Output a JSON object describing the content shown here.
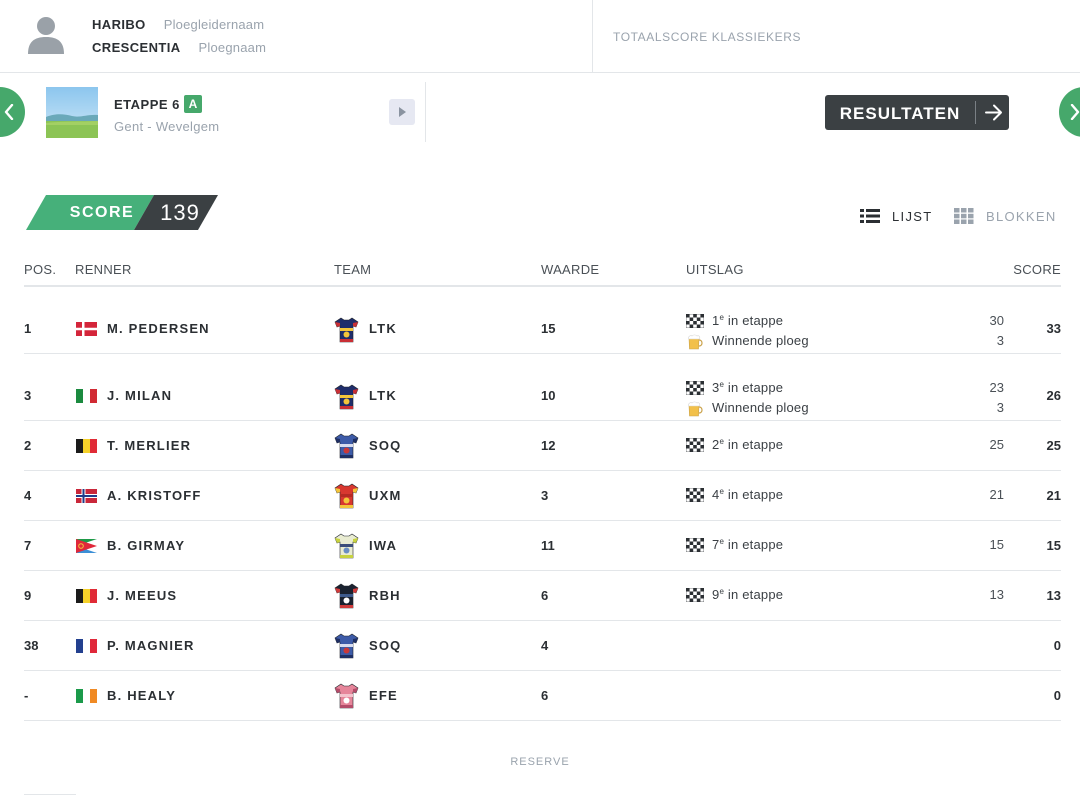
{
  "header": {
    "manager_name": "HARIBO",
    "manager_label": "Ploegleidernaam",
    "team_name": "CRESCENTIA",
    "team_label": "Ploegnaam",
    "total_label": "TOTAALSCORE KLASSIEKERS"
  },
  "stage": {
    "title": "ETAPPE 6",
    "badge": "A",
    "route": "Gent - Wevelgem",
    "results_label": "RESULTATEN"
  },
  "score": {
    "label": "SCORE",
    "value": "139"
  },
  "view": {
    "list_label": "LIJST",
    "blocks_label": "BLOKKEN"
  },
  "table": {
    "headers": {
      "pos": "POS.",
      "rider": "RENNER",
      "team": "TEAM",
      "value": "WAARDE",
      "result": "UITSLAG",
      "score": "SCORE"
    },
    "rows": [
      {
        "pos": "1",
        "flag": "denmark",
        "name": "M. PEDERSEN",
        "jersey": "lidl-trek",
        "team": "LTK",
        "value": "15",
        "results": [
          {
            "icon": "checkered-flag-icon",
            "ordinal": "1",
            "suffix": "e",
            "text": " in etappe",
            "points": "30"
          },
          {
            "icon": "beer-icon",
            "ordinal": "",
            "suffix": "",
            "text": "Winnende ploeg",
            "points": "3"
          }
        ],
        "score": "33"
      },
      {
        "pos": "3",
        "flag": "italy",
        "name": "J. MILAN",
        "jersey": "lidl-trek",
        "team": "LTK",
        "value": "10",
        "results": [
          {
            "icon": "checkered-flag-icon",
            "ordinal": "3",
            "suffix": "e",
            "text": " in etappe",
            "points": "23"
          },
          {
            "icon": "beer-icon",
            "ordinal": "",
            "suffix": "",
            "text": "Winnende ploeg",
            "points": "3"
          }
        ],
        "score": "26"
      },
      {
        "pos": "2",
        "flag": "belgium",
        "name": "T. MERLIER",
        "jersey": "soudal",
        "team": "SOQ",
        "value": "12",
        "results": [
          {
            "icon": "checkered-flag-icon",
            "ordinal": "2",
            "suffix": "e",
            "text": " in etappe",
            "points": "25"
          }
        ],
        "score": "25"
      },
      {
        "pos": "4",
        "flag": "norway",
        "name": "A. KRISTOFF",
        "jersey": "uno-x",
        "team": "UXM",
        "value": "3",
        "results": [
          {
            "icon": "checkered-flag-icon",
            "ordinal": "4",
            "suffix": "e",
            "text": " in etappe",
            "points": "21"
          }
        ],
        "score": "21"
      },
      {
        "pos": "7",
        "flag": "eritrea",
        "name": "B. GIRMAY",
        "jersey": "intermarche",
        "team": "IWA",
        "value": "11",
        "results": [
          {
            "icon": "checkered-flag-icon",
            "ordinal": "7",
            "suffix": "e",
            "text": " in etappe",
            "points": "15"
          }
        ],
        "score": "15"
      },
      {
        "pos": "9",
        "flag": "belgium",
        "name": "J. MEEUS",
        "jersey": "bora",
        "team": "RBH",
        "value": "6",
        "results": [
          {
            "icon": "checkered-flag-icon",
            "ordinal": "9",
            "suffix": "e",
            "text": " in etappe",
            "points": "13"
          }
        ],
        "score": "13"
      },
      {
        "pos": "38",
        "flag": "france",
        "name": "P. MAGNIER",
        "jersey": "soudal",
        "team": "SOQ",
        "value": "4",
        "results": [],
        "score": "0"
      },
      {
        "pos": "-",
        "flag": "ireland",
        "name": "B. HEALY",
        "jersey": "ef",
        "team": "EFE",
        "value": "6",
        "results": [],
        "score": "0"
      }
    ]
  },
  "footer": {
    "reserve_label": "RESERVE"
  },
  "colors": {
    "accent_green": "#46a86b",
    "dark": "#3b4043",
    "muted": "#9aa3ad"
  }
}
